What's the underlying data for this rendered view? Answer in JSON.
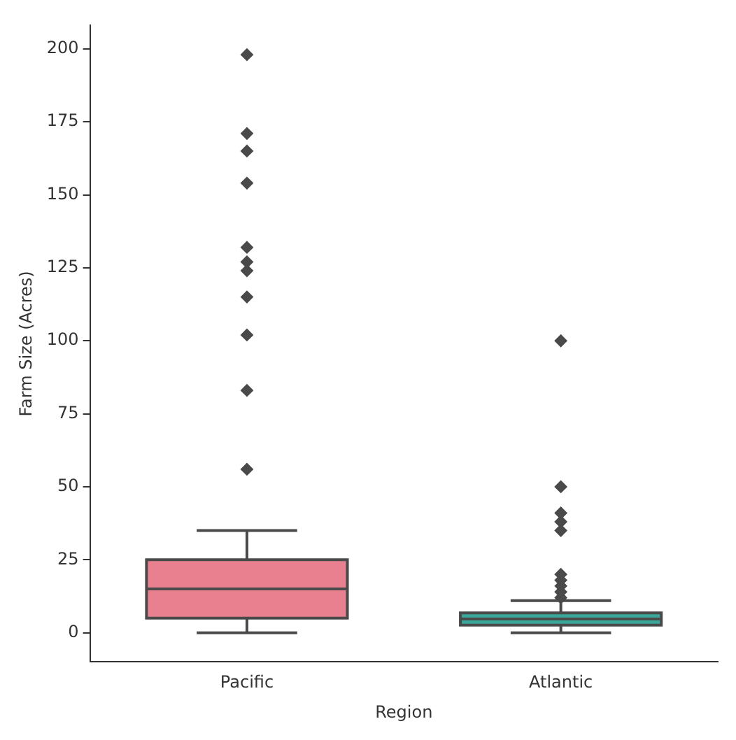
{
  "chart_data": {
    "type": "box",
    "xlabel": "Region",
    "ylabel": "Farm Size (Acres)",
    "categories": [
      "Pacific",
      "Atlantic"
    ],
    "colors": [
      "#e8808f",
      "#3aa79a"
    ],
    "boxes": [
      {
        "low": 0,
        "q1": 5,
        "median": 15,
        "q3": 25,
        "high": 35,
        "outliers": [
          56,
          83,
          102,
          115,
          124,
          127,
          132,
          154,
          165,
          171,
          198
        ]
      },
      {
        "low": 0,
        "q1": 2.6,
        "median": 4.7,
        "q3": 6.8,
        "high": 11,
        "outliers": [
          12,
          14,
          16,
          18,
          20,
          35,
          38,
          41,
          50,
          100
        ]
      }
    ],
    "ylim": [
      -10,
      208
    ],
    "yticks": [
      0,
      25,
      50,
      75,
      100,
      125,
      150,
      175,
      200
    ],
    "grid": false,
    "marker": "diamond"
  }
}
